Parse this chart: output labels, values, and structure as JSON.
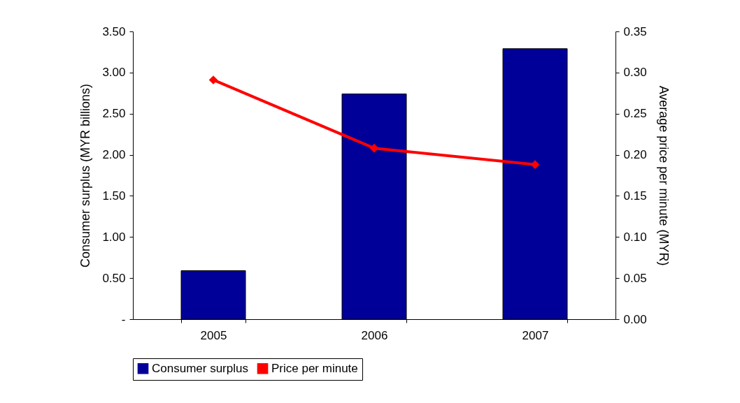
{
  "chart_data": {
    "type": "bar",
    "categories": [
      "2005",
      "2006",
      "2007"
    ],
    "ylabel": "Consumer surplus (MYR billions)",
    "y2label": "Average price per minute (MYR)",
    "series": [
      {
        "name": "Consumer surplus",
        "color": "#000099",
        "values": [
          0.59,
          2.74,
          3.29
        ]
      },
      {
        "name": "Price per minute",
        "type": "line",
        "axis": "y2",
        "color": "#ff0000",
        "marker": "diamond",
        "values": [
          0.291,
          0.208,
          0.188
        ]
      }
    ],
    "ylim": [
      0,
      3.5
    ],
    "yticks": [
      {
        "value": 0,
        "label": "-"
      },
      {
        "value": 0.5,
        "label": "0.50"
      },
      {
        "value": 1,
        "label": "1.00"
      },
      {
        "value": 1.5,
        "label": "1.50"
      },
      {
        "value": 2,
        "label": "2.00"
      },
      {
        "value": 2.5,
        "label": "2.50"
      },
      {
        "value": 3,
        "label": "3.00"
      },
      {
        "value": 3.5,
        "label": "3.50"
      }
    ],
    "y2lim": [
      0,
      0.35
    ],
    "y2ticks": [
      {
        "value": 0,
        "label": "0.00"
      },
      {
        "value": 0.05,
        "label": "0.05"
      },
      {
        "value": 0.1,
        "label": "0.10"
      },
      {
        "value": 0.15,
        "label": "0.15"
      },
      {
        "value": 0.2,
        "label": "0.20"
      },
      {
        "value": 0.25,
        "label": "0.25"
      },
      {
        "value": 0.3,
        "label": "0.30"
      },
      {
        "value": 0.35,
        "label": "0.35"
      }
    ],
    "grid": false,
    "legend": "bottom"
  }
}
